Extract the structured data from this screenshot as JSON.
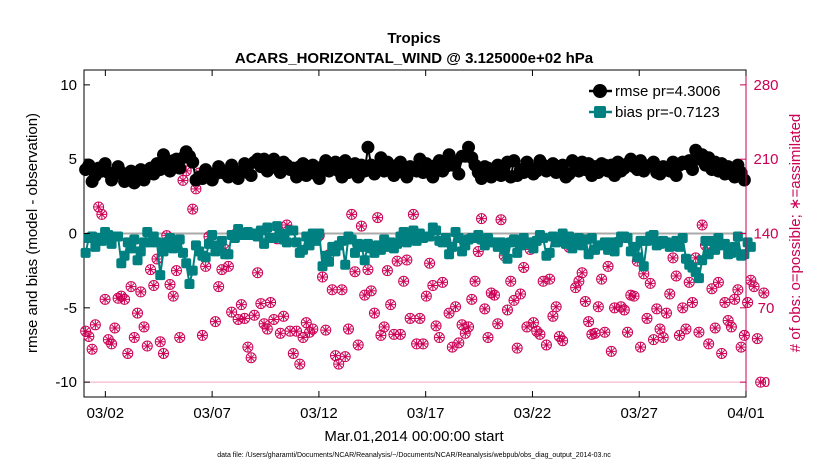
{
  "title": "Tropics",
  "subtitle": "ACARS_HORIZONTAL_WIND @ 3.125000e+02 hPa",
  "footer": "data file: /Users/gharamti/Documents/NCAR/Reanalysis/~/Documents/NCAR/Reanalysis/webpub/obs_diag_output_2014-03.nc",
  "colors": {
    "rmse": "#000000",
    "bias": "#008080",
    "obs": "#cc0055",
    "zero": "#aaaaaa"
  },
  "chart_data": {
    "type": "line",
    "x_axis": {
      "label": "Mar.01,2014 00:00:00 start",
      "range_days": [
        0,
        31
      ],
      "ticks": [
        1,
        6,
        11,
        16,
        21,
        26,
        31
      ],
      "tick_labels": [
        "03/02",
        "03/07",
        "03/12",
        "03/17",
        "03/22",
        "03/27",
        "04/01"
      ]
    },
    "y_left": {
      "label": "rmse and bias (model - observation)",
      "range": [
        -11,
        11
      ],
      "ticks": [
        -10,
        -5,
        0,
        5,
        10
      ]
    },
    "y_right": {
      "label": "# of obs: o=possible; ∗=assimilated",
      "range": [
        -14,
        294
      ],
      "ticks": [
        0,
        70,
        140,
        210,
        280
      ]
    },
    "legend": {
      "position": "top-right",
      "rmse_label": "rmse pr=4.3006",
      "bias_label": "bias pr=-0.7123"
    },
    "series_rmse": [
      4.3,
      4.6,
      3.5,
      3.9,
      4.4,
      4.2,
      4.7,
      4.1,
      3.6,
      4.0,
      4.5,
      4.1,
      3.5,
      3.9,
      4.2,
      3.4,
      3.8,
      4.3,
      3.6,
      4.2,
      4.4,
      4.0,
      4.7,
      4.3,
      5.3,
      4.6,
      4.2,
      4.9,
      5.0,
      4.4,
      5.1,
      5.5,
      5.2,
      4.8,
      3.6,
      3.8,
      3.7,
      4.3,
      3.9,
      3.6,
      4.0,
      4.5,
      4.1,
      4.2,
      3.8,
      4.6,
      4.0,
      3.7,
      4.2,
      4.7,
      4.1,
      3.9,
      4.8,
      5.0,
      4.5,
      5.0,
      4.2,
      4.7,
      5.0,
      4.4,
      4.1,
      4.8,
      4.6,
      4.3,
      4.4,
      3.8,
      4.5,
      4.7,
      3.9,
      4.1,
      4.6,
      4.0,
      3.7,
      4.5,
      4.9,
      4.2,
      4.4,
      4.8,
      4.2,
      3.8,
      4.9,
      4.1,
      4.3,
      4.7,
      3.8,
      4.6,
      4.2,
      5.8,
      4.6,
      4.0,
      4.4,
      5.1,
      4.2,
      4.8,
      4.3,
      3.9,
      4.6,
      4.8,
      4.1,
      3.8,
      4.5,
      4.4,
      4.2,
      5.0,
      4.1,
      4.7,
      4.3,
      3.8,
      4.6,
      4.9,
      4.2,
      4.5,
      5.3,
      4.6,
      4.8,
      4.0,
      5.2,
      5.2,
      5.8,
      5.1,
      4.6,
      4.1,
      3.7,
      4.5,
      4.4,
      3.8,
      4.2,
      4.6,
      3.9,
      4.5,
      4.8,
      3.8,
      4.9,
      3.9,
      4.3,
      4.1,
      4.8,
      4.4,
      4.0,
      4.2,
      4.9,
      4.6,
      4.2,
      4.4,
      4.7,
      4.1,
      4.3,
      4.6,
      3.8,
      4.0,
      4.9,
      4.5,
      4.2,
      4.8,
      4.3,
      4.7,
      3.9,
      4.5,
      4.1,
      4.7,
      4.6,
      4.2,
      4.6,
      3.9,
      4.8,
      4.2,
      4.4,
      4.7,
      5.0,
      4.5,
      4.3,
      4.9,
      4.2,
      4.5,
      4.6,
      4.8,
      4.1,
      4.0,
      4.5,
      4.4,
      4.2,
      4.8,
      3.9,
      4.6,
      4.8,
      4.7,
      4.9,
      4.3,
      5.6,
      5.0,
      5.3,
      4.6,
      5.1,
      4.3,
      4.8,
      4.2,
      4.7,
      4.0,
      4.5,
      4.0,
      3.8,
      4.6,
      4.1,
      3.6
    ],
    "series_bias": [
      -1.3,
      -0.3,
      -0.2,
      -0.9,
      -0.3,
      -0.5,
      0.1,
      -0.1,
      -0.7,
      -0.2,
      -0.2,
      -2.0,
      -1.5,
      -0.6,
      -1.0,
      -0.4,
      -1.8,
      -1.2,
      -0.6,
      0.1,
      -0.6,
      -0.2,
      -0.6,
      -2.8,
      -1.2,
      -0.6,
      -0.3,
      -1.0,
      -0.9,
      -0.4,
      -1.3,
      -2.0,
      -3.4,
      -2.5,
      -0.8,
      -1.2,
      -1.5,
      -1.6,
      -0.7,
      -0.1,
      -1.2,
      -0.8,
      -0.5,
      -1.4,
      -1.4,
      -0.1,
      -0.3,
      0.3,
      -0.1,
      -0.1,
      0.1,
      -0.1,
      0.0,
      -0.2,
      0.2,
      -0.7,
      0.4,
      -0.3,
      -0.3,
      0.5,
      0.0,
      -0.4,
      -0.6,
      0.2,
      0.2,
      -0.6,
      -1.3,
      -1.1,
      -0.2,
      -0.8,
      0.0,
      -0.5,
      0.0,
      -2.2,
      -1.5,
      -1.9,
      -0.9,
      -1.2,
      -0.8,
      -0.5,
      -2.1,
      -0.2,
      -0.4,
      -1.3,
      -0.7,
      -0.9,
      -1.8,
      -0.7,
      -1.0,
      -1.3,
      -0.8,
      -1.1,
      -0.4,
      -0.9,
      -0.6,
      -1.0,
      -0.7,
      -0.2,
      0.1,
      -0.6,
      -0.4,
      0.2,
      -0.5,
      0.0,
      -0.3,
      -0.2,
      -0.2,
      0.4,
      0.2,
      -0.5,
      -0.6,
      -0.3,
      -1.4,
      -0.9,
      0.1,
      -0.3,
      -1.2,
      -0.8,
      -0.4,
      -0.3,
      -0.3,
      -0.1,
      -0.4,
      -0.8,
      -0.3,
      -0.6,
      -0.6,
      -0.9,
      -0.6,
      -1.1,
      -1.7,
      -0.6,
      -0.4,
      -1.3,
      -0.8,
      -0.3,
      -0.7,
      -0.6,
      -1.0,
      -0.5,
      -0.1,
      -0.3,
      -1.5,
      -1.3,
      -0.2,
      -0.6,
      -0.5,
      0.0,
      -0.7,
      -0.2,
      -1.0,
      -0.7,
      -0.3,
      -0.8,
      -0.4,
      -1.4,
      -0.3,
      -1.1,
      -0.8,
      -0.8,
      -0.6,
      -1.1,
      -0.6,
      -1.2,
      -0.6,
      -0.2,
      -0.2,
      -0.3,
      -1.2,
      -0.9,
      -1.6,
      -0.5,
      -2.2,
      -0.5,
      -0.2,
      -0.1,
      -0.8,
      -0.7,
      -0.5,
      -0.6,
      -0.9,
      -0.8,
      -0.5,
      -0.9,
      -0.3,
      -1.7,
      -2.1,
      -2.3,
      -2.6,
      -3.0,
      -1.8,
      -0.5,
      -1.4,
      -0.5,
      -1.1,
      -0.3,
      -0.8,
      -0.7,
      -1.4,
      -1.3,
      -0.9,
      -0.2,
      -1.5,
      -1.4,
      -0.6,
      -0.9
    ],
    "series_obs_possible": [
      48,
      43,
      31,
      54,
      165,
      158,
      78,
      40,
      36,
      51,
      79,
      81,
      78,
      27,
      90,
      42,
      65,
      85,
      52,
      34,
      106,
      91,
      116,
      38,
      27,
      138,
      92,
      81,
      105,
      42,
      190,
      199,
      213,
      163,
      182,
      197,
      44,
      109,
      137,
      197,
      57,
      90,
      106,
      125,
      109,
      66,
      139,
      59,
      73,
      60,
      33,
      23,
      63,
      103,
      74,
      55,
      50,
      75,
      59,
      135,
      46,
      62,
      148,
      48,
      27,
      48,
      17,
      42,
      56,
      47,
      50,
      134,
      138,
      99,
      49,
      120,
      87,
      25,
      17,
      87,
      24,
      50,
      158,
      104,
      35,
      147,
      82,
      106,
      86,
      65,
      155,
      44,
      52,
      105,
      73,
      45,
      114,
      45,
      95,
      115,
      60,
      158,
      36,
      60,
      36,
      81,
      112,
      91,
      53,
      42,
      94,
      133,
      65,
      33,
      71,
      37,
      54,
      46,
      52,
      78,
      95,
      123,
      154,
      69,
      42,
      84,
      82,
      55,
      153,
      119,
      68,
      95,
      77,
      32,
      83,
      108,
      52,
      125,
      56,
      48,
      45,
      95,
      35,
      97,
      62,
      71,
      43,
      39,
      137,
      127,
      198,
      89,
      95,
      103,
      76,
      57,
      45,
      46,
      71,
      97,
      47,
      109,
      29,
      70,
      132,
      71,
      68,
      47,
      82,
      81,
      114,
      33,
      102,
      60,
      93,
      40,
      69,
      50,
      42,
      65,
      83,
      117,
      100,
      44,
      70,
      50,
      94,
      75,
      117,
      47,
      148,
      129,
      36,
      88,
      51,
      94,
      27,
      75,
      58,
      52,
      78,
      87,
      33,
      44,
      75,
      96,
      90,
      41,
      0,
      84
    ],
    "series_obs_assimilated": [
      48,
      43,
      31,
      54,
      165,
      158,
      78,
      40,
      36,
      51,
      79,
      81,
      78,
      27,
      90,
      42,
      65,
      85,
      52,
      34,
      106,
      91,
      116,
      38,
      27,
      138,
      92,
      81,
      105,
      42,
      190,
      199,
      213,
      163,
      182,
      197,
      44,
      109,
      137,
      197,
      57,
      90,
      106,
      125,
      109,
      66,
      139,
      59,
      73,
      60,
      33,
      23,
      63,
      103,
      74,
      55,
      50,
      75,
      59,
      135,
      46,
      62,
      148,
      48,
      27,
      48,
      17,
      42,
      56,
      47,
      50,
      134,
      138,
      99,
      49,
      120,
      87,
      25,
      17,
      87,
      24,
      50,
      158,
      104,
      35,
      147,
      82,
      106,
      86,
      65,
      155,
      44,
      52,
      105,
      73,
      45,
      114,
      45,
      95,
      115,
      60,
      158,
      36,
      60,
      36,
      81,
      112,
      91,
      53,
      42,
      94,
      133,
      65,
      33,
      71,
      37,
      54,
      46,
      52,
      78,
      95,
      123,
      154,
      69,
      42,
      84,
      82,
      55,
      153,
      119,
      68,
      95,
      77,
      32,
      83,
      108,
      52,
      125,
      56,
      48,
      45,
      95,
      35,
      97,
      62,
      71,
      43,
      39,
      137,
      127,
      198,
      89,
      95,
      103,
      76,
      57,
      45,
      46,
      71,
      97,
      47,
      109,
      29,
      70,
      132,
      71,
      68,
      47,
      82,
      81,
      114,
      33,
      102,
      60,
      93,
      40,
      69,
      50,
      42,
      65,
      83,
      117,
      100,
      44,
      70,
      50,
      94,
      75,
      117,
      47,
      148,
      129,
      36,
      88,
      51,
      94,
      27,
      75,
      58,
      52,
      78,
      87,
      33,
      44,
      75,
      96,
      90,
      41,
      0,
      84
    ]
  }
}
